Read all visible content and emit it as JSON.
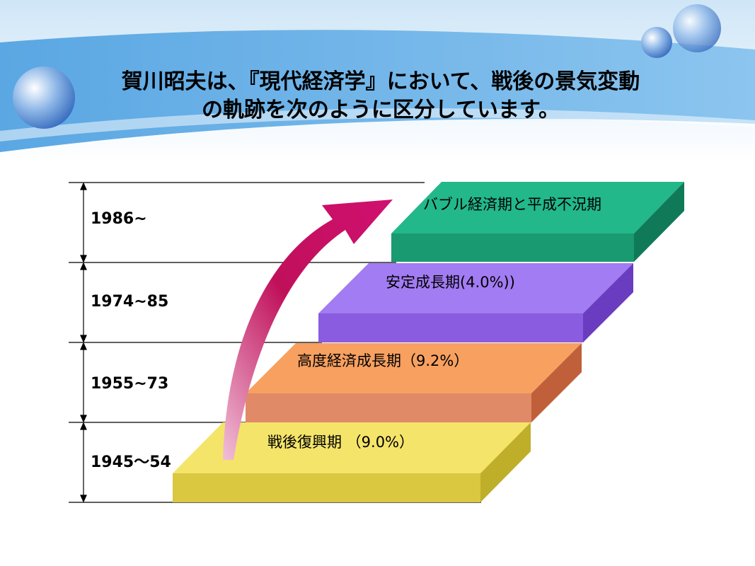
{
  "title": {
    "lines": [
      "賀川昭夫は、『現代経済学』において、戦後の景気変動",
      "の軌跡を次のように区分しています。"
    ]
  },
  "periods": [
    {
      "years": "1986~",
      "label": "バブル経済期と平成不況期"
    },
    {
      "years": "1974~85",
      "label": "安定成長期(4.0%))"
    },
    {
      "years": "1955~73",
      "label": "高度経済成長期（9.2%）"
    },
    {
      "years": "1945～54",
      "label": "戦後復興期 （9.0%）"
    }
  ]
}
